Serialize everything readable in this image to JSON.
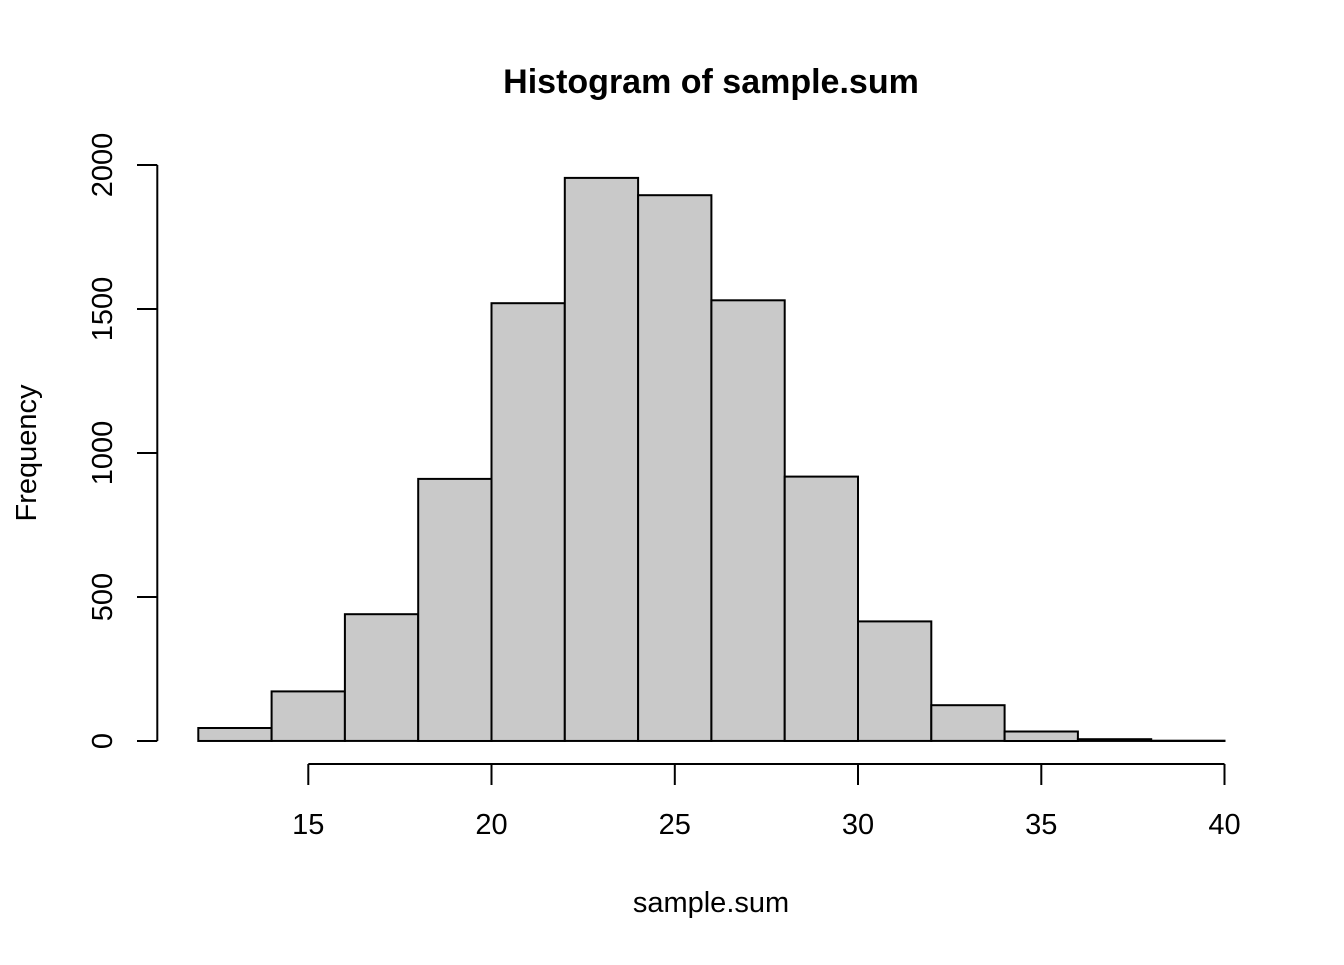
{
  "chart_data": {
    "type": "bar",
    "subtype": "histogram",
    "title": "Histogram of sample.sum",
    "xlabel": "sample.sum",
    "ylabel": "Frequency",
    "bin_edges": [
      12,
      14,
      16,
      18,
      20,
      22,
      24,
      26,
      28,
      30,
      32,
      34,
      36,
      38,
      40
    ],
    "counts": [
      45,
      172,
      440,
      910,
      1520,
      1955,
      1895,
      1530,
      918,
      415,
      124,
      33,
      6,
      1
    ],
    "x_ticks": [
      15,
      20,
      25,
      30,
      35,
      40
    ],
    "y_ticks": [
      0,
      500,
      1000,
      1500,
      2000
    ],
    "xlim": [
      12,
      40
    ],
    "ylim": [
      0,
      2000
    ],
    "grid": false,
    "legend": false,
    "bar_fill": "#c9c9c9",
    "bar_stroke": "#000000",
    "axis_color": "#000000",
    "background": "#ffffff"
  }
}
